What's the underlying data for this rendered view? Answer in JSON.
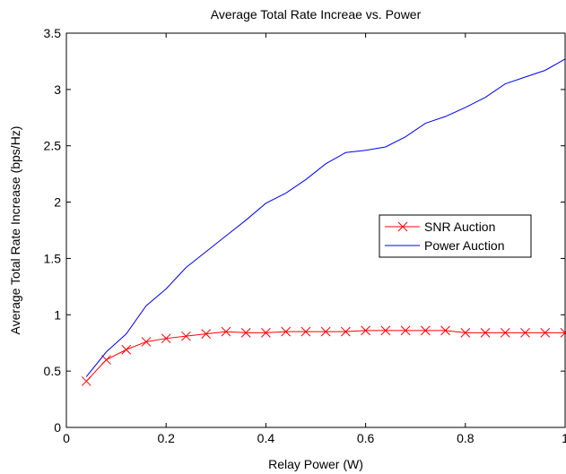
{
  "chart_data": {
    "type": "line",
    "title": "Average Total Rate Increae vs. Power",
    "xlabel": "Relay Power (W)",
    "ylabel": "Average Total Rate Increase (bps/Hz)",
    "xlim": [
      0,
      1
    ],
    "ylim": [
      0,
      3.5
    ],
    "xticks": [
      "0",
      "0.2",
      "0.4",
      "0.6",
      "0.8",
      "1"
    ],
    "yticks": [
      "0",
      "0.5",
      "1",
      "1.5",
      "2",
      "2.5",
      "3",
      "3.5"
    ],
    "grid": false,
    "legend_position": "center-right",
    "series": [
      {
        "name": "SNR Auction",
        "color": "#ff0000",
        "marker": "x",
        "x": [
          0.04,
          0.08,
          0.12,
          0.16,
          0.2,
          0.24,
          0.28,
          0.32,
          0.36,
          0.4,
          0.44,
          0.48,
          0.52,
          0.56,
          0.6,
          0.64,
          0.68,
          0.72,
          0.76,
          0.8,
          0.84,
          0.88,
          0.92,
          0.96,
          1.0
        ],
        "y": [
          0.41,
          0.6,
          0.69,
          0.76,
          0.79,
          0.81,
          0.83,
          0.85,
          0.84,
          0.84,
          0.85,
          0.85,
          0.85,
          0.85,
          0.86,
          0.86,
          0.86,
          0.86,
          0.86,
          0.84,
          0.84,
          0.84,
          0.84,
          0.84,
          0.84
        ]
      },
      {
        "name": "Power Auction",
        "color": "#0000ff",
        "marker": "none",
        "x": [
          0.04,
          0.08,
          0.12,
          0.16,
          0.2,
          0.24,
          0.28,
          0.32,
          0.36,
          0.4,
          0.44,
          0.48,
          0.52,
          0.56,
          0.6,
          0.64,
          0.68,
          0.72,
          0.76,
          0.8,
          0.84,
          0.88,
          0.92,
          0.96,
          1.0
        ],
        "y": [
          0.45,
          0.67,
          0.83,
          1.08,
          1.23,
          1.42,
          1.56,
          1.7,
          1.84,
          1.99,
          2.08,
          2.2,
          2.34,
          2.44,
          2.46,
          2.49,
          2.58,
          2.7,
          2.76,
          2.84,
          2.93,
          3.05,
          3.11,
          3.17,
          3.27
        ]
      }
    ]
  }
}
